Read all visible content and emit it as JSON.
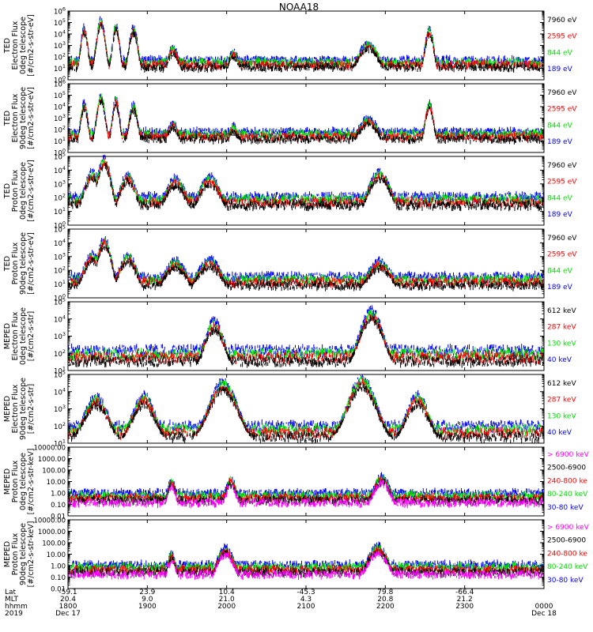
{
  "title": "NOAA18",
  "colors": {
    "blue": "#0000ff",
    "red": "#ff0000",
    "green": "#00e000",
    "black": "#000000",
    "magenta": "#ff00ff"
  },
  "chart_data": [
    {
      "type": "scatter",
      "scale": "log",
      "ylim": [
        1,
        1000000
      ],
      "ylabel": [
        "TED",
        "Electron Flux",
        "0deg telescope",
        "[#/cm2-s-str-eV]"
      ],
      "ticks": [
        "10^0",
        "10^1",
        "10^2",
        "10^3",
        "10^4",
        "10^5",
        "10^6"
      ],
      "series": [
        {
          "name": "7960 eV",
          "color": "black"
        },
        {
          "name": "2595 eV",
          "color": "red"
        },
        {
          "name": "844 eV",
          "color": "green"
        },
        {
          "name": "189 eV",
          "color": "blue"
        }
      ],
      "bursts": [
        {
          "x": 0.2,
          "w": 0.05,
          "peak": 4.6
        },
        {
          "x": 0.41,
          "w": 0.06,
          "peak": 5.3
        },
        {
          "x": 0.6,
          "w": 0.05,
          "peak": 4.8
        },
        {
          "x": 0.82,
          "w": 0.06,
          "peak": 4.6
        },
        {
          "x": 1.32,
          "w": 0.08,
          "peak": 2.8
        },
        {
          "x": 2.08,
          "w": 0.07,
          "peak": 2.5
        },
        {
          "x": 3.78,
          "w": 0.14,
          "peak": 3.2
        },
        {
          "x": 4.55,
          "w": 0.06,
          "peak": 4.5
        }
      ],
      "background": 1.9
    },
    {
      "type": "scatter",
      "scale": "log",
      "ylim": [
        1,
        1000000
      ],
      "ylabel": [
        "TED",
        "Electron Flux",
        "90deg telescope",
        "[#/cm2-s-str-eV]"
      ],
      "ticks": [
        "10^0",
        "10^1",
        "10^2",
        "10^3",
        "10^4",
        "10^5",
        "10^6"
      ],
      "series": [
        {
          "name": "7960 eV",
          "color": "black"
        },
        {
          "name": "2595 eV",
          "color": "red"
        },
        {
          "name": "844 eV",
          "color": "green"
        },
        {
          "name": "189 eV",
          "color": "blue"
        }
      ],
      "bursts": [
        {
          "x": 0.2,
          "w": 0.05,
          "peak": 4.4
        },
        {
          "x": 0.41,
          "w": 0.06,
          "peak": 5.0
        },
        {
          "x": 0.6,
          "w": 0.05,
          "peak": 4.7
        },
        {
          "x": 0.82,
          "w": 0.06,
          "peak": 4.2
        },
        {
          "x": 1.32,
          "w": 0.08,
          "peak": 2.6
        },
        {
          "x": 2.08,
          "w": 0.07,
          "peak": 2.3
        },
        {
          "x": 3.78,
          "w": 0.14,
          "peak": 3.0
        },
        {
          "x": 4.55,
          "w": 0.06,
          "peak": 4.3
        }
      ],
      "background": 2.0
    },
    {
      "type": "scatter",
      "scale": "log",
      "ylim": [
        1,
        100000
      ],
      "ylabel": [
        "TED",
        "Proton Flux",
        "0deg telescope",
        "[#/cm2-s-str-eV]"
      ],
      "ticks": [
        "10^0",
        "10^1",
        "10^2",
        "10^3",
        "10^4",
        "10^5"
      ],
      "series": [
        {
          "name": "7960 eV",
          "color": "black"
        },
        {
          "name": "2595 eV",
          "color": "red"
        },
        {
          "name": "844 eV",
          "color": "green"
        },
        {
          "name": "189 eV",
          "color": "blue"
        }
      ],
      "bursts": [
        {
          "x": 0.3,
          "w": 0.12,
          "peak": 3.9
        },
        {
          "x": 0.45,
          "w": 0.1,
          "peak": 4.9
        },
        {
          "x": 0.75,
          "w": 0.12,
          "peak": 3.7
        },
        {
          "x": 1.35,
          "w": 0.15,
          "peak": 3.4
        },
        {
          "x": 1.78,
          "w": 0.16,
          "peak": 3.5
        },
        {
          "x": 3.92,
          "w": 0.16,
          "peak": 3.9
        }
      ],
      "background": 2.3
    },
    {
      "type": "scatter",
      "scale": "log",
      "ylim": [
        1,
        100000
      ],
      "ylabel": [
        "TED",
        "Proton Flux",
        "90deg telescope",
        "[#/cm2-s-str-eV]"
      ],
      "ticks": [
        "10^0",
        "10^1",
        "10^2",
        "10^3",
        "10^4",
        "10^5"
      ],
      "series": [
        {
          "name": "7960 eV",
          "color": "black"
        },
        {
          "name": "2595 eV",
          "color": "red"
        },
        {
          "name": "844 eV",
          "color": "green"
        },
        {
          "name": "189 eV",
          "color": "blue"
        }
      ],
      "bursts": [
        {
          "x": 0.3,
          "w": 0.12,
          "peak": 3.2
        },
        {
          "x": 0.45,
          "w": 0.1,
          "peak": 4.3
        },
        {
          "x": 0.75,
          "w": 0.12,
          "peak": 3.1
        },
        {
          "x": 1.35,
          "w": 0.15,
          "peak": 2.7
        },
        {
          "x": 1.78,
          "w": 0.16,
          "peak": 2.8
        },
        {
          "x": 3.92,
          "w": 0.16,
          "peak": 2.7
        }
      ],
      "background": 1.7
    },
    {
      "type": "scatter",
      "scale": "log",
      "ylim": [
        10,
        100000
      ],
      "ylabel": [
        "MEPED",
        "Electron Flux",
        "0deg telescope",
        "[#/cm2-s-str]"
      ],
      "ticks": [
        "10^1",
        "10^2",
        "10^3",
        "10^4",
        "10^5"
      ],
      "series": [
        {
          "name": "612 keV",
          "color": "black"
        },
        {
          "name": "287 keV",
          "color": "red"
        },
        {
          "name": "130 keV",
          "color": "green"
        },
        {
          "name": "40 keV",
          "color": "blue"
        }
      ],
      "bursts": [
        {
          "x": 1.84,
          "w": 0.12,
          "peak": 3.9
        },
        {
          "x": 3.82,
          "w": 0.15,
          "peak": 4.5
        }
      ],
      "background": 2.3
    },
    {
      "type": "scatter",
      "scale": "log",
      "ylim": [
        10,
        100000
      ],
      "ylabel": [
        "MEPED",
        "Electron Flux",
        "90deg telescope",
        "[#/cm2-s-str]"
      ],
      "ticks": [
        "10^1",
        "10^2",
        "10^3",
        "10^4",
        "10^5"
      ],
      "series": [
        {
          "name": "612 keV",
          "color": "black"
        },
        {
          "name": "287 keV",
          "color": "red"
        },
        {
          "name": "130 keV",
          "color": "green"
        },
        {
          "name": "40 keV",
          "color": "blue"
        }
      ],
      "bursts": [
        {
          "x": 0.35,
          "w": 0.15,
          "peak": 3.7
        },
        {
          "x": 0.95,
          "w": 0.14,
          "peak": 3.8
        },
        {
          "x": 1.95,
          "w": 0.18,
          "peak": 4.6
        },
        {
          "x": 3.7,
          "w": 0.18,
          "peak": 4.8
        },
        {
          "x": 4.4,
          "w": 0.14,
          "peak": 3.8
        }
      ],
      "background": 2.1
    },
    {
      "type": "scatter",
      "scale": "log",
      "ylim": [
        0.01,
        10000
      ],
      "ylabel": [
        "MEPED",
        "Proton Flux",
        "0deg telescope",
        "[#/cm2-s-str-keV]"
      ],
      "ticks": [
        "0.01",
        "0.10",
        "1.00",
        "10.00",
        "100.00",
        "1000.00",
        "10000.00"
      ],
      "series": [
        {
          "name": "> 6900 keV",
          "color": "magenta"
        },
        {
          "name": "2500-6900",
          "color": "black"
        },
        {
          "name": "240-800 ke",
          "color": "red"
        },
        {
          "name": "80-240 keV",
          "color": "green"
        },
        {
          "name": "30-80 keV",
          "color": "blue"
        }
      ],
      "bursts": [
        {
          "x": 1.3,
          "w": 0.06,
          "peak": 1.2
        },
        {
          "x": 2.05,
          "w": 0.08,
          "peak": 1.3
        },
        {
          "x": 3.95,
          "w": 0.12,
          "peak": 1.5
        }
      ],
      "background": 0.2
    },
    {
      "type": "scatter",
      "scale": "log",
      "ylim": [
        0.01,
        10000
      ],
      "ylabel": [
        "MEPED",
        "Proton Flux",
        "90deg telescope",
        "[#/cm2-s-str-keV]"
      ],
      "ticks": [
        "0.01",
        "0.10",
        "1.00",
        "10.00",
        "100.00",
        "1000.00",
        "10000.00"
      ],
      "series": [
        {
          "name": "> 6900 keV",
          "color": "magenta"
        },
        {
          "name": "2500-6900",
          "color": "black"
        },
        {
          "name": "240-800 ke",
          "color": "red"
        },
        {
          "name": "80-240 keV",
          "color": "green"
        },
        {
          "name": "30-80 keV",
          "color": "blue"
        }
      ],
      "bursts": [
        {
          "x": 1.3,
          "w": 0.06,
          "peak": 1.1
        },
        {
          "x": 1.98,
          "w": 0.12,
          "peak": 1.6
        },
        {
          "x": 3.9,
          "w": 0.15,
          "peak": 1.7
        }
      ],
      "background": 0.3
    }
  ],
  "x_axis": {
    "range_hours": [
      18,
      24
    ],
    "row_labels": [
      "Lat",
      "MLT",
      "hhmm",
      "2019"
    ],
    "columns": [
      {
        "x": 18.0,
        "lat": "-59.1",
        "mlt": "20.4",
        "hhmm": "1800",
        "extra": "Dec 17"
      },
      {
        "x": 19.0,
        "lat": "23.9",
        "mlt": "9.0",
        "hhmm": "1900",
        "extra": ""
      },
      {
        "x": 20.0,
        "lat": "10.4",
        "mlt": "21.0",
        "hhmm": "2000",
        "extra": ""
      },
      {
        "x": 21.0,
        "lat": "-45.3",
        "mlt": "4.3",
        "hhmm": "2100",
        "extra": ""
      },
      {
        "x": 22.0,
        "lat": "79.8",
        "mlt": "20.8",
        "hhmm": "2200",
        "extra": ""
      },
      {
        "x": 23.0,
        "lat": "-66.4",
        "mlt": "21.2",
        "hhmm": "2300",
        "extra": ""
      },
      {
        "x": 24.0,
        "lat": "",
        "mlt": "",
        "hhmm": "0000",
        "extra": "Dec 18"
      }
    ]
  }
}
